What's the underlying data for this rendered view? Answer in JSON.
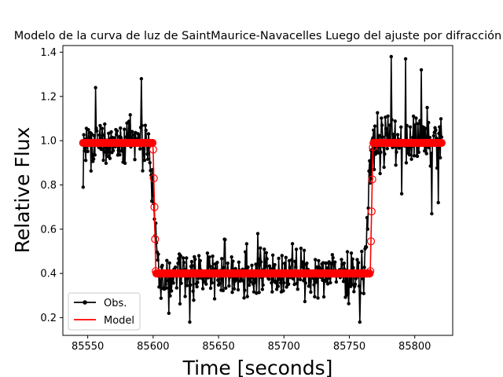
{
  "chart_data": {
    "type": "line",
    "title": "Modelo de la curva de luz de SaintMaurice-Navacelles Luego del ajuste por difracción",
    "xlabel": "Time [seconds]",
    "ylabel": "Relative Flux",
    "xlim": [
      85531,
      85829
    ],
    "ylim": [
      0.12,
      1.43
    ],
    "xticks": [
      85550,
      85600,
      85650,
      85700,
      85750,
      85800
    ],
    "yticks": [
      0.2,
      0.4,
      0.6,
      0.8,
      1.0,
      1.2,
      1.4
    ],
    "xtick_labels": [
      "85550",
      "85600",
      "85650",
      "85700",
      "85750",
      "85800"
    ],
    "ytick_labels": [
      "0.2",
      "0.4",
      "0.6",
      "0.8",
      "1.0",
      "1.2",
      "1.4"
    ],
    "grid": false,
    "legend_position": "lower-left",
    "series": [
      {
        "name": "Obs.",
        "color": "#000000",
        "marker": "dot",
        "t_start": 85546.5,
        "t_end": 85820.5,
        "sample_interval": 0.5,
        "level_before": 1.0,
        "level_during": 0.4,
        "level_after": 1.0,
        "ingress_start": 85597,
        "ingress_end": 85604,
        "egress_start": 85761,
        "egress_end": 85768,
        "scatter": 0.08,
        "notable_points": [
          [
            85546.5,
            0.79
          ],
          [
            85556,
            1.24
          ],
          [
            85591,
            1.28
          ],
          [
            85612,
            0.22
          ],
          [
            85628,
            0.18
          ],
          [
            85680,
            0.58
          ],
          [
            85758,
            0.18
          ],
          [
            85782,
            1.38
          ],
          [
            85790,
            0.76
          ],
          [
            85793,
            1.37
          ],
          [
            85805,
            1.32
          ],
          [
            85813,
            0.67
          ],
          [
            85818,
            0.72
          ]
        ]
      },
      {
        "name": "Model",
        "color": "#ff0000",
        "marker": "open-circle",
        "t_start": 85546.5,
        "t_end": 85820.5,
        "sample_interval": 0.5,
        "level_outside": 0.99,
        "level_inside": 0.4,
        "transition_points": [
          [
            85600,
            0.96
          ],
          [
            85601,
            0.7
          ],
          [
            85602,
            0.41
          ],
          [
            85766,
            0.41
          ],
          [
            85767,
            0.68
          ],
          [
            85768,
            0.97
          ]
        ]
      }
    ]
  }
}
